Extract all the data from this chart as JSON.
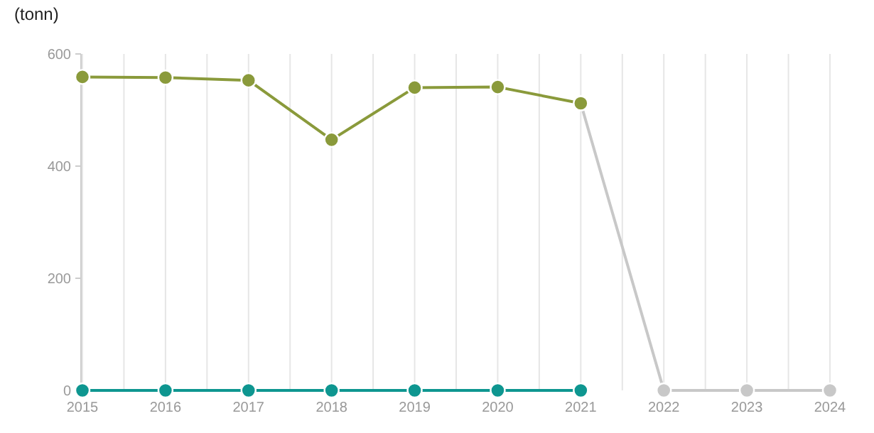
{
  "chart_data": {
    "type": "line",
    "ylabel": "(tonn)",
    "series": [
      {
        "x": [
          2021,
          2022,
          2023,
          2024
        ],
        "values": [
          512,
          0,
          0,
          0
        ],
        "color": "#c8c8c8"
      },
      {
        "x": [
          2015,
          2016,
          2017,
          2018,
          2019,
          2020,
          2021
        ],
        "values": [
          0,
          0,
          0,
          0,
          0,
          0,
          0
        ],
        "color": "#0e9690"
      },
      {
        "x": [
          2015,
          2016,
          2017,
          2018,
          2019,
          2020,
          2021
        ],
        "values": [
          559,
          558,
          553,
          447,
          540,
          541,
          512
        ],
        "color": "#8a9a3b"
      }
    ],
    "xlim": [
      2015,
      2024
    ],
    "xticks": [
      2015,
      {
        "value": 2015.5,
        "label": null
      },
      2016,
      {
        "value": 2016.5,
        "label": null
      },
      2017,
      {
        "value": 2017.5,
        "label": null
      },
      2018,
      {
        "value": 2018.5,
        "label": null
      },
      2019,
      {
        "value": 2019.5,
        "label": null
      },
      2020,
      {
        "value": 2020.5,
        "label": null
      },
      2021,
      {
        "value": 2021.5,
        "label": null
      },
      2022,
      {
        "value": 2022.5,
        "label": null
      },
      2023,
      {
        "value": 2023.5,
        "label": null
      },
      2024
    ],
    "ylim": [
      0,
      600
    ],
    "yticks": [
      0,
      200,
      400,
      600
    ],
    "grid": "x",
    "marker": "circle",
    "line_style": "solid"
  }
}
